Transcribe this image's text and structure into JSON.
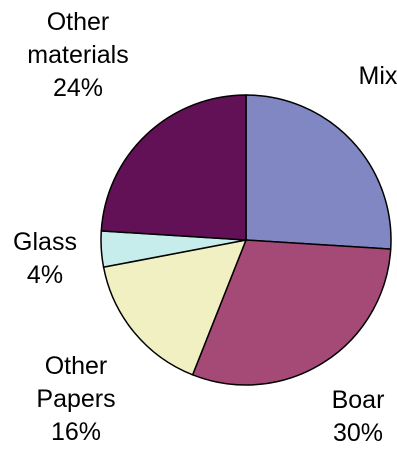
{
  "chart_data": {
    "type": "pie",
    "slices": [
      {
        "label": "Mixed",
        "value": 26,
        "color": "#8087c3"
      },
      {
        "label": "Boards",
        "value": 30,
        "color": "#a54a76"
      },
      {
        "label": "Other Papers",
        "value": 16,
        "color": "#f0f0c3"
      },
      {
        "label": "Glass",
        "value": 4,
        "color": "#c6ecec"
      },
      {
        "label": "Other materials",
        "value": 24,
        "color": "#631157"
      }
    ],
    "labels": {
      "other_materials": {
        "line1": "Other",
        "line2": "materials",
        "pct": "24%"
      },
      "mixed": {
        "line1": "Mix"
      },
      "glass": {
        "line1": "Glass",
        "pct": "4%"
      },
      "other_papers": {
        "line1": "Other",
        "line2": "Papers",
        "pct": "16%"
      },
      "boards": {
        "line1": "Boar",
        "pct": "30%"
      }
    },
    "start_angle": "12 o'clock",
    "direction": "clockwise",
    "legend": "none"
  }
}
